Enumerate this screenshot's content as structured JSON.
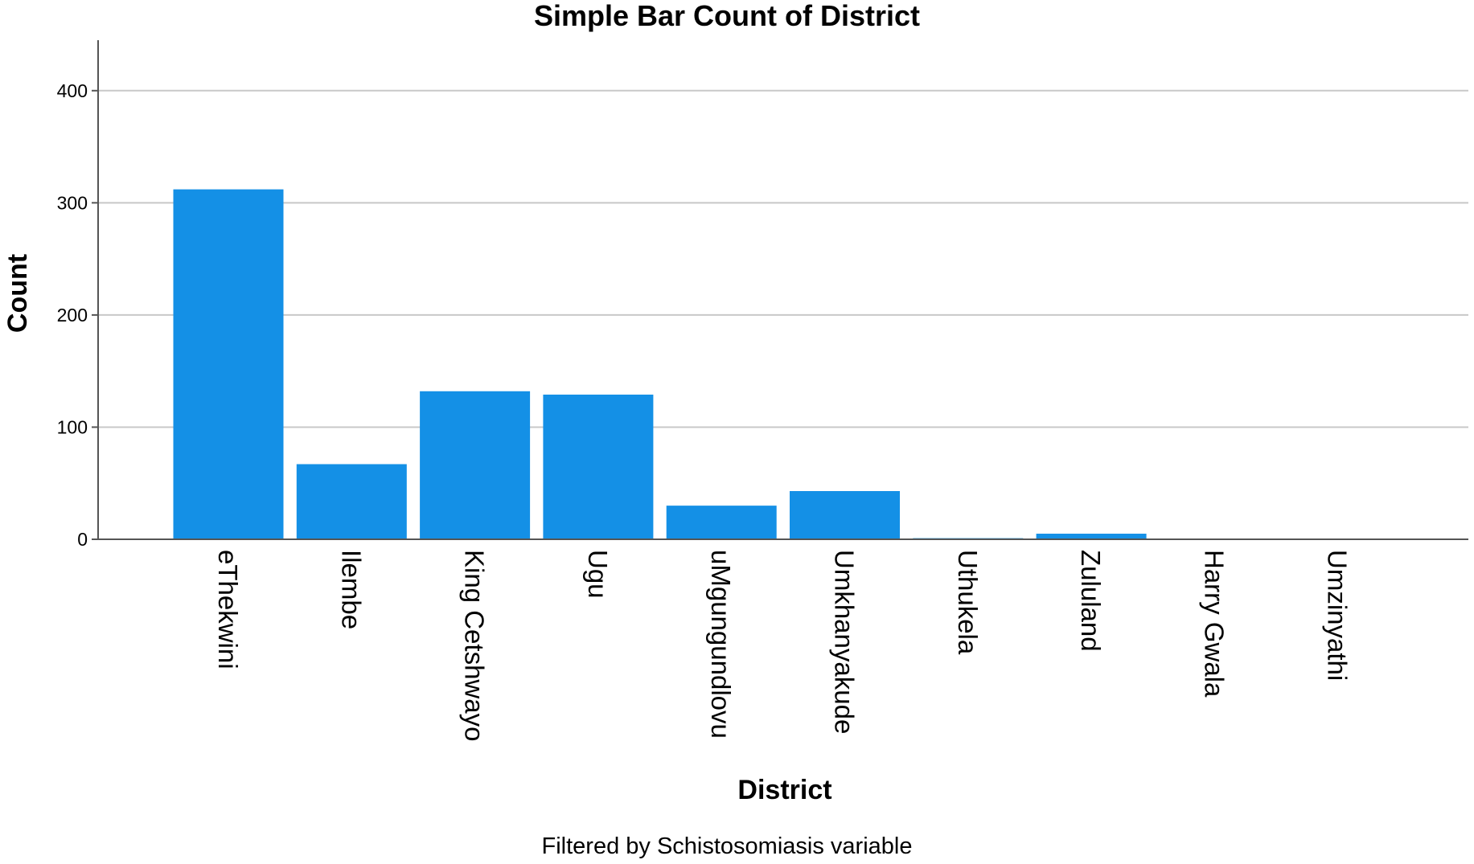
{
  "chart_data": {
    "type": "bar",
    "title": "Simple Bar Count of District",
    "xlabel": "District",
    "ylabel": "Count",
    "footnote": "Filtered by Schistosomiasis variable",
    "categories": [
      "eThekwini",
      "Ilembe",
      "King Cetshwayo",
      "Ugu",
      "uMgungundlovu",
      "Umkhanyakude",
      "Uthukela",
      "Zululand",
      "Harry Gwala",
      "Umzinyathi"
    ],
    "values": [
      312,
      67,
      132,
      129,
      30,
      43,
      1,
      5,
      0,
      0
    ],
    "ylim": [
      0,
      445
    ],
    "yticks": [
      0,
      100,
      200,
      300,
      400
    ],
    "grid": true,
    "bar_color": "#1490e6"
  }
}
